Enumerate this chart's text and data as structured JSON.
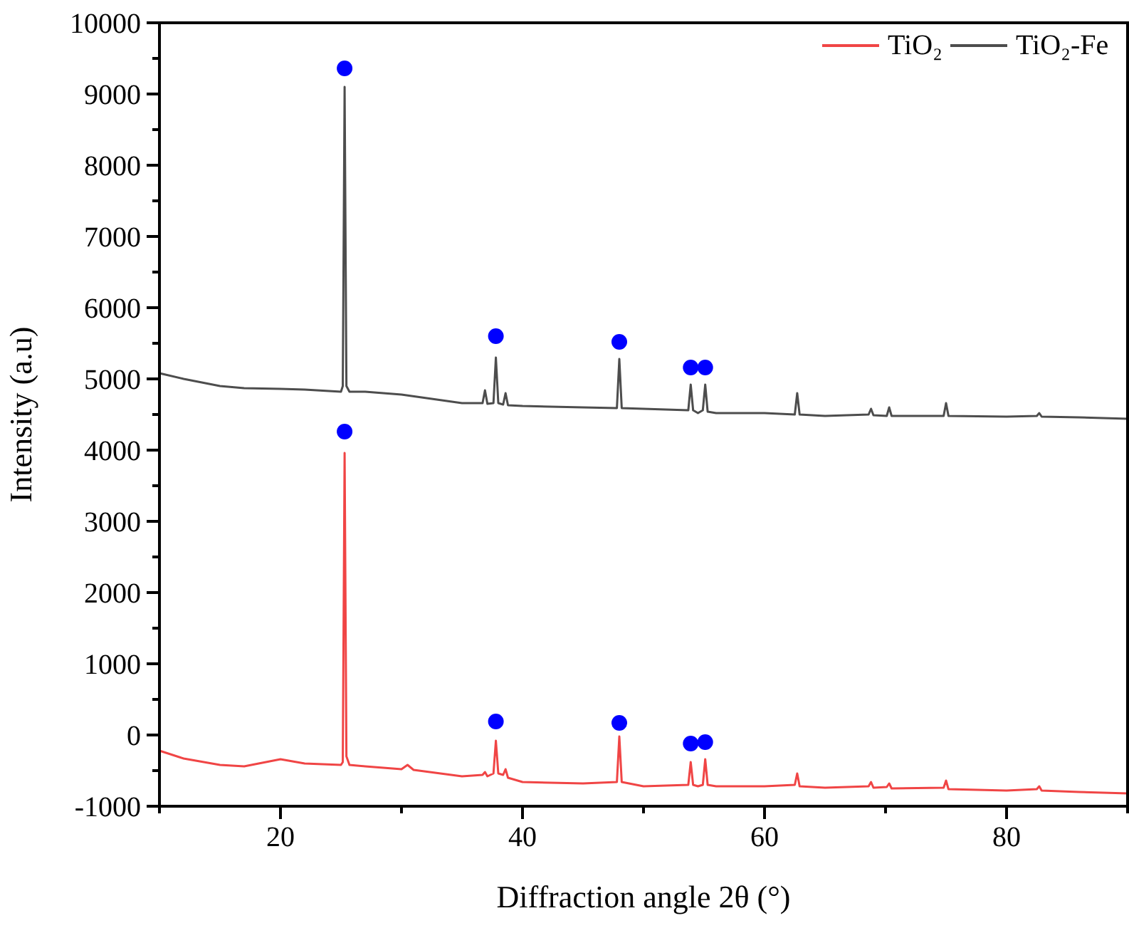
{
  "chart_data": {
    "type": "line",
    "xlabel": "Diffraction angle 2θ (°)",
    "ylabel": "Intensity (a.u)",
    "xlim": [
      10,
      90
    ],
    "ylim": [
      -1000,
      10000
    ],
    "xticks": [
      {
        "value": 10,
        "label": null
      },
      20,
      {
        "value": 30,
        "label": null
      },
      40,
      {
        "value": 50,
        "label": null
      },
      60,
      {
        "value": 70,
        "label": null
      },
      80,
      {
        "value": 90,
        "label": null
      }
    ],
    "yticks": [
      -1000,
      {
        "value": -500,
        "label": null
      },
      0,
      {
        "value": 500,
        "label": null
      },
      1000,
      {
        "value": 1500,
        "label": null
      },
      2000,
      {
        "value": 2500,
        "label": null
      },
      3000,
      {
        "value": 3500,
        "label": null
      },
      4000,
      {
        "value": 4500,
        "label": null
      },
      5000,
      {
        "value": 5500,
        "label": null
      },
      6000,
      {
        "value": 6500,
        "label": null
      },
      7000,
      {
        "value": 7500,
        "label": null
      },
      8000,
      {
        "value": 8500,
        "label": null
      },
      9000,
      {
        "value": 9500,
        "label": null
      },
      10000
    ],
    "grid": false,
    "legend": "top right",
    "line_style": "solid",
    "series": [
      {
        "name": "TiO₂",
        "color": "#f04545",
        "x": [
          10,
          12,
          15,
          17,
          20,
          22,
          25,
          25.15,
          25.3,
          25.45,
          25.7,
          27,
          30,
          30.5,
          31,
          35,
          36.7,
          36.9,
          37.1,
          37.6,
          37.8,
          38.0,
          38.4,
          38.6,
          38.8,
          40,
          45,
          47.8,
          48,
          48.2,
          50,
          53.7,
          53.9,
          54.1,
          54.5,
          54.9,
          55.1,
          55.3,
          56,
          60,
          62.5,
          62.7,
          62.9,
          65,
          68.6,
          68.8,
          69,
          70.1,
          70.3,
          70.5,
          74.8,
          75,
          75.2,
          80,
          82.5,
          82.7,
          82.9,
          86,
          90
        ],
        "values": [
          -220,
          -330,
          -420,
          -440,
          -340,
          -400,
          -420,
          -380,
          3960,
          -300,
          -420,
          -440,
          -480,
          -420,
          -490,
          -580,
          -560,
          -520,
          -580,
          -540,
          -80,
          -540,
          -560,
          -480,
          -600,
          -660,
          -680,
          -660,
          -20,
          -660,
          -720,
          -700,
          -380,
          -700,
          -720,
          -700,
          -340,
          -700,
          -720,
          -720,
          -700,
          -540,
          -720,
          -740,
          -720,
          -660,
          -740,
          -730,
          -680,
          -750,
          -740,
          -640,
          -760,
          -780,
          -760,
          -720,
          -780,
          -800,
          -820
        ]
      },
      {
        "name": "TiO₂-Fe",
        "color": "#4d4d4d",
        "x": [
          10,
          12,
          15,
          17,
          20,
          22,
          25,
          25.15,
          25.3,
          25.45,
          25.7,
          27,
          30,
          35,
          36.7,
          36.9,
          37.1,
          37.6,
          37.8,
          38.0,
          38.4,
          38.6,
          38.8,
          40,
          45,
          47.8,
          48,
          48.2,
          50,
          53.7,
          53.9,
          54.1,
          54.5,
          54.9,
          55.1,
          55.3,
          56,
          60,
          62.5,
          62.7,
          62.9,
          65,
          68.6,
          68.8,
          69,
          70.1,
          70.3,
          70.5,
          74.8,
          75,
          75.2,
          80,
          82.5,
          82.7,
          82.9,
          86,
          90
        ],
        "values": [
          5080,
          5000,
          4900,
          4870,
          4860,
          4850,
          4820,
          4900,
          9100,
          4900,
          4820,
          4820,
          4780,
          4660,
          4660,
          4840,
          4650,
          4660,
          5300,
          4660,
          4640,
          4800,
          4630,
          4620,
          4600,
          4590,
          5280,
          4590,
          4580,
          4560,
          4920,
          4560,
          4520,
          4560,
          4920,
          4540,
          4520,
          4520,
          4500,
          4800,
          4500,
          4480,
          4500,
          4580,
          4490,
          4480,
          4600,
          4480,
          4480,
          4660,
          4480,
          4470,
          4480,
          4520,
          4470,
          4460,
          4440
        ]
      },
      {
        "type": "scatter",
        "marker": "circle",
        "color": "#0000ff",
        "x": [
          25.3,
          37.8,
          48,
          53.9,
          55.1,
          25.3,
          37.8,
          48,
          53.9,
          55.1
        ],
        "values": [
          9360,
          5600,
          5520,
          5160,
          5160,
          4260,
          190,
          170,
          -120,
          -100
        ]
      }
    ]
  }
}
